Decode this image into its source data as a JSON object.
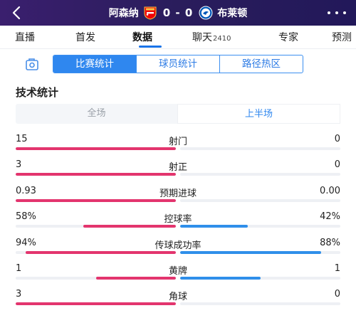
{
  "header": {
    "home_team": "阿森纳",
    "away_team": "布莱顿",
    "score": "0 - 0"
  },
  "tabs": [
    {
      "label": "直播",
      "count": ""
    },
    {
      "label": "首发",
      "count": ""
    },
    {
      "label": "数据",
      "count": "",
      "active": true
    },
    {
      "label": "聊天",
      "count": "2410"
    },
    {
      "label": "专家",
      "count": ""
    },
    {
      "label": "预测",
      "count": ""
    }
  ],
  "segments": {
    "items": [
      "比赛统计",
      "球员统计",
      "路径热区"
    ],
    "active": 0
  },
  "section_title": "技术统计",
  "periods": {
    "items": [
      "全场",
      "上半场"
    ],
    "active": 1
  },
  "colors": {
    "home": "#e3356e",
    "away": "#2f8fea",
    "header_bg": "#2a1d5c"
  },
  "stats": [
    {
      "name": "射门",
      "home": "15",
      "away": "0",
      "home_share": 1.0,
      "away_share": 0.0
    },
    {
      "name": "射正",
      "home": "3",
      "away": "0",
      "home_share": 1.0,
      "away_share": 0.0
    },
    {
      "name": "预期进球",
      "home": "0.93",
      "away": "0.00",
      "home_share": 1.0,
      "away_share": 0.0
    },
    {
      "name": "控球率",
      "home": "58%",
      "away": "42%",
      "home_share": 0.58,
      "away_share": 0.42
    },
    {
      "name": "传球成功率",
      "home": "94%",
      "away": "88%",
      "home_share": 0.94,
      "away_share": 0.88
    },
    {
      "name": "黄牌",
      "home": "1",
      "away": "1",
      "home_share": 0.5,
      "away_share": 0.5
    },
    {
      "name": "角球",
      "home": "3",
      "away": "0",
      "home_share": 1.0,
      "away_share": 0.0
    }
  ]
}
